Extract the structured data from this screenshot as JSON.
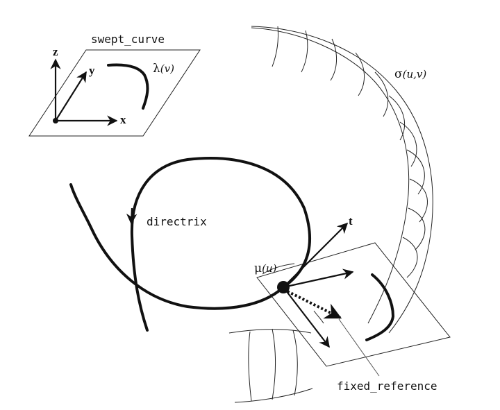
{
  "labels": {
    "swept_curve": "swept_curve",
    "axis_z": "z",
    "axis_y": "y",
    "axis_x": "x",
    "lambda_symbol": "λ",
    "lambda_arg": "(v)",
    "sigma_symbol": "σ",
    "sigma_arg": "(u,v)",
    "directrix": "directrix",
    "tangent_t": "t",
    "mu_symbol": "μ",
    "mu_arg": "(u)",
    "fixed_reference": "fixed_reference"
  }
}
